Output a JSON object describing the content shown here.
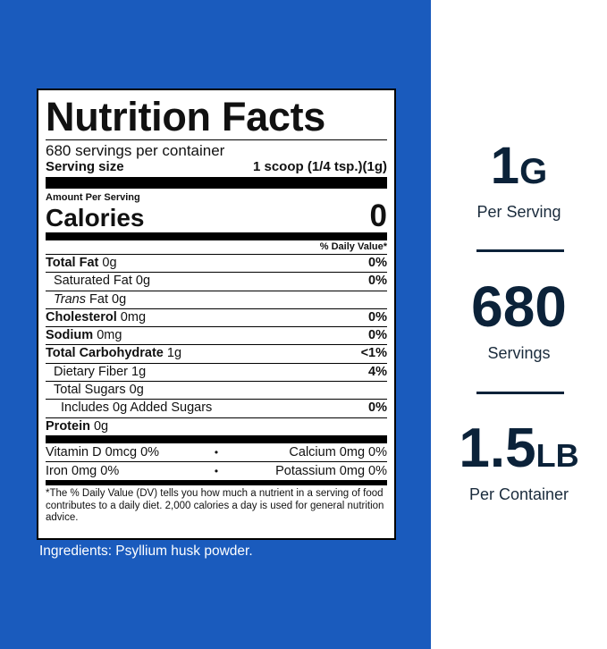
{
  "nutrition_label": {
    "title": "Nutrition Facts",
    "servings_per_container": "680 servings per container",
    "serving_size_label": "Serving size",
    "serving_size_value": "1 scoop (1/4 tsp.)(1g)",
    "amount_per_serving": "Amount Per Serving",
    "calories_label": "Calories",
    "calories_value": "0",
    "daily_value_header": "% Daily Value*",
    "nutrients": [
      {
        "name": "Total Fat",
        "amount": "0g",
        "dv": "0%"
      },
      {
        "name": "Saturated Fat",
        "amount": "0g",
        "dv": "0%"
      },
      {
        "name_italic": "Trans",
        "name_rest": " Fat",
        "amount": "0g",
        "dv": ""
      },
      {
        "name": "Cholesterol",
        "amount": "0mg",
        "dv": "0%"
      },
      {
        "name": "Sodium",
        "amount": "0mg",
        "dv": "0%"
      },
      {
        "name": "Total Carbohydrate",
        "amount": "1g",
        "dv": "<1%"
      },
      {
        "name": "Dietary Fiber",
        "amount": "1g",
        "dv": "4%"
      },
      {
        "name": "Total Sugars",
        "amount": "0g",
        "dv": ""
      },
      {
        "name": "Includes 0g Added Sugars",
        "amount": "",
        "dv": "0%"
      },
      {
        "name": "Protein",
        "amount": "0g",
        "dv": ""
      }
    ],
    "vitamins": [
      {
        "left": "Vitamin D  0mcg  0%",
        "right": "Calcium  0mg  0%"
      },
      {
        "left": "Iron  0mg  0%",
        "right": "Potassium  0mg  0%"
      }
    ],
    "separator_glyph": "•",
    "footnote": "*The % Daily Value (DV) tells you how much a nutrient in a serving of food contributes to a daily diet.  2,000 calories a day is used for general nutrition advice."
  },
  "ingredients": "Ingredients: Psyllium husk powder.",
  "stats": [
    {
      "value": "1",
      "unit": "G",
      "label": "Per Serving"
    },
    {
      "value": "680",
      "unit": "",
      "label": "Servings"
    },
    {
      "value": "1.5",
      "unit": "LB",
      "label": "Per Container"
    }
  ],
  "colors": {
    "panel_blue": "#1a5bbd",
    "stat_text": "#0b2239"
  }
}
